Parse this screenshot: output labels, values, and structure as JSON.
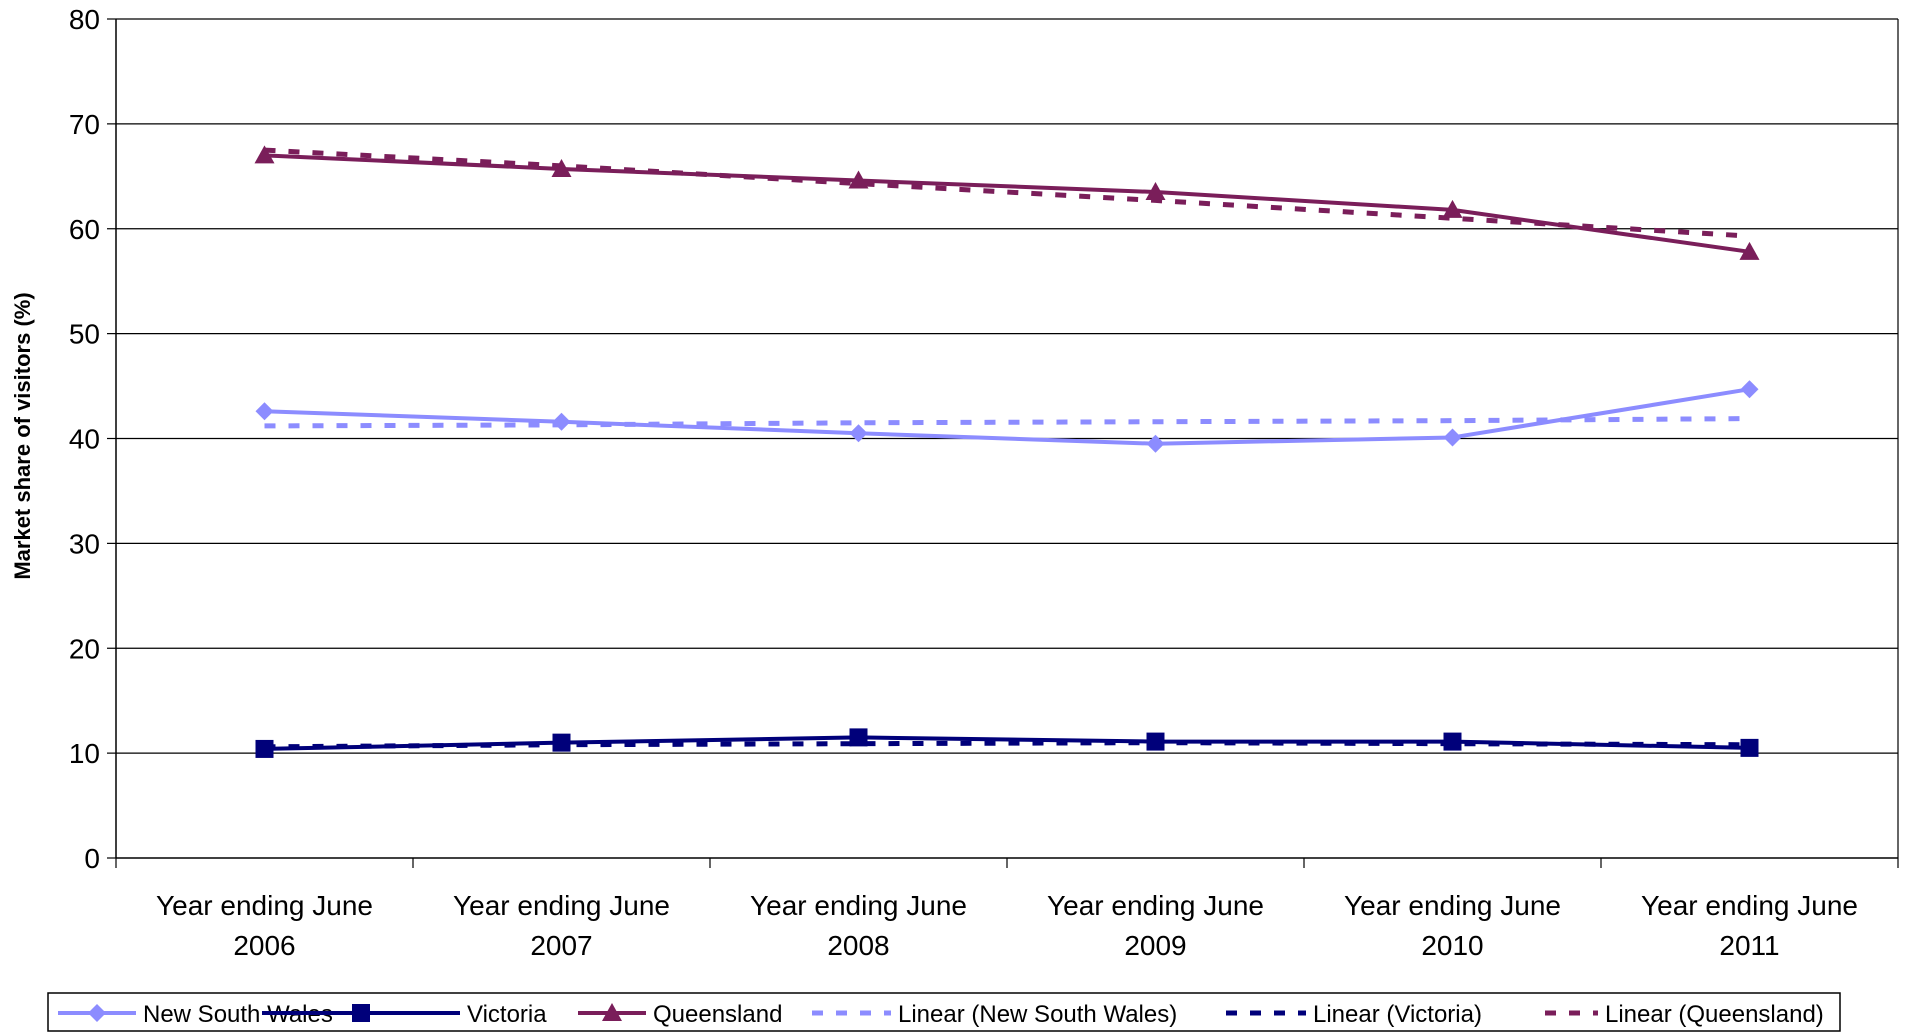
{
  "chart_data": {
    "type": "line",
    "title": "",
    "xlabel": "",
    "ylabel": "Market share of visitors (%)",
    "ylim": [
      0,
      80
    ],
    "yticks": [
      0,
      10,
      20,
      30,
      40,
      50,
      60,
      70,
      80
    ],
    "grid": true,
    "legend_position": "bottom",
    "categories": [
      [
        "Year ending June",
        "2006"
      ],
      [
        "Year ending June",
        "2007"
      ],
      [
        "Year ending June",
        "2008"
      ],
      [
        "Year ending June",
        "2009"
      ],
      [
        "Year ending June",
        "2010"
      ],
      [
        "Year ending June",
        "2011"
      ]
    ],
    "series": [
      {
        "name": "New South Wales",
        "values": [
          42.6,
          41.6,
          40.5,
          39.5,
          40.1,
          44.7
        ],
        "color": "#8C8CFF",
        "marker": "diamond",
        "style": "solid"
      },
      {
        "name": "Victoria",
        "values": [
          10.4,
          11.0,
          11.5,
          11.1,
          11.1,
          10.5
        ],
        "color": "#00007A",
        "marker": "square",
        "style": "solid"
      },
      {
        "name": "Queensland",
        "values": [
          67.0,
          65.7,
          64.6,
          63.5,
          61.8,
          57.8
        ],
        "color": "#7A1E5A",
        "marker": "triangle",
        "style": "solid"
      },
      {
        "name": "Linear (New South Wales)",
        "values": [
          41.2,
          41.3,
          41.5,
          41.6,
          41.7,
          41.9
        ],
        "color": "#8C8CFF",
        "marker": "none",
        "style": "dashed"
      },
      {
        "name": "Linear (Victoria)",
        "values": [
          10.6,
          10.8,
          10.9,
          11.0,
          10.9,
          10.8
        ],
        "color": "#00007A",
        "marker": "none",
        "style": "dashed"
      },
      {
        "name": "Linear (Queensland)",
        "values": [
          67.5,
          66.0,
          64.3,
          62.7,
          61.0,
          59.3
        ],
        "color": "#7A1E5A",
        "marker": "none",
        "style": "dashed"
      }
    ]
  }
}
